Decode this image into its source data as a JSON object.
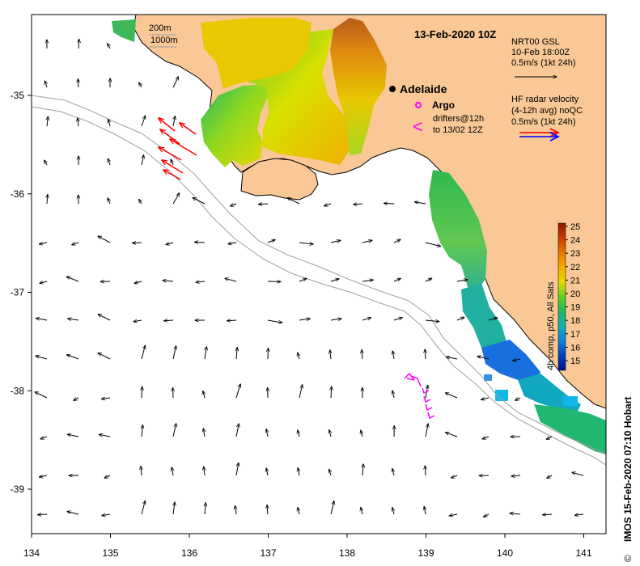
{
  "header": {
    "date": "13-Feb-2020 10Z"
  },
  "scale_legend": {
    "line1": "200m",
    "line2": "1000m"
  },
  "place": {
    "name": "Adelaide"
  },
  "argo": {
    "label": "Argo"
  },
  "drifters": {
    "symbol": "<",
    "line1": "drifters@12h",
    "line2": "to 13/02 12Z"
  },
  "nrt_legend": {
    "line1": "NRT00 GSL",
    "line2": "10-Feb 18:00Z",
    "line3": "0.5m/s (1kt 24h)"
  },
  "hf_legend": {
    "line1": "HF radar velocity",
    "line2": "(4-12h avg) noQC",
    "line3": "0.5m/s (1kt 24h)"
  },
  "colorbar": {
    "title": "4h comp, p50, All Sats",
    "ticks": [
      "25",
      "24",
      "23",
      "22",
      "21",
      "20",
      "19",
      "18",
      "17",
      "16",
      "15"
    ],
    "colors": [
      "#8b1a00",
      "#c83a00",
      "#e87800",
      "#f0b000",
      "#e8d800",
      "#b8e000",
      "#60d020",
      "#20b860",
      "#10b0b0",
      "#1080e0",
      "#0040c0",
      "#00108a"
    ]
  },
  "credit": "IMOS 15-Feb-2020 07:10 Hobart",
  "axes": {
    "x_ticks": [
      "134",
      "135",
      "136",
      "137",
      "138",
      "139",
      "140",
      "141"
    ],
    "y_ticks": [
      "-35",
      "-36",
      "-37",
      "-38",
      "-39"
    ]
  },
  "colors": {
    "land": "#f9c896",
    "ocean": "#ffffff",
    "hf_red": "#ff0000",
    "hf_blue": "#0000ff",
    "drifter": "#ff00ff"
  }
}
